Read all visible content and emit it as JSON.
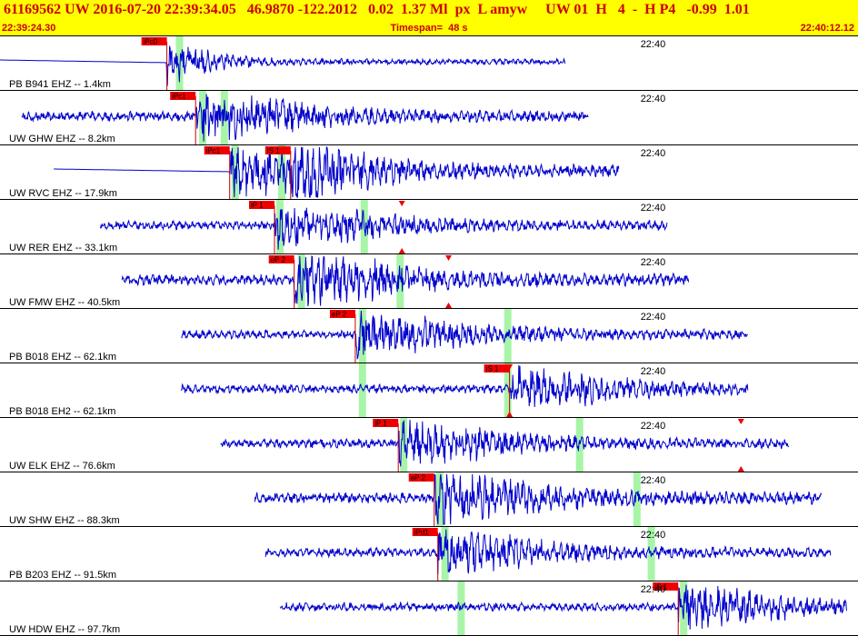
{
  "header": {
    "title": "61169562 UW 2016-07-20 22:39:34.05   46.9870 -122.2012   0.02  1.37 Ml  px  L amyw     UW 01  H   4  -  H P4   -0.99  1.01",
    "start_time": "22:39:24.30",
    "timespan": "Timespan=  48 s",
    "end_time": "22:40:12.12"
  },
  "time_start_s": 0,
  "time_span_s": 47.82,
  "minute_mark": {
    "label": "22:40",
    "time_s": 35.7
  },
  "colors": {
    "header_bg": "#ffff00",
    "header_text": "#cc0000",
    "waveform": "#0000cc",
    "pick_box": "#ee0000",
    "pick_window": "#a8f5a8",
    "marker": "#ee0000"
  },
  "channels": [
    {
      "label": "PB B941 EHZ -- 1.4km",
      "start": 0.0,
      "end": 31.5,
      "amp": 18,
      "flat_before": 9.3,
      "picks": [
        {
          "label": "iPc0",
          "t": 9.3
        }
      ],
      "windows": [
        9.8
      ],
      "phase_lines": [
        9.3
      ],
      "markers": []
    },
    {
      "label": "UW GHW EHZ -- 8.2km",
      "start": 1.2,
      "end": 32.8,
      "amp": 20,
      "flat_before": 0,
      "picks": [
        {
          "label": "iPc1",
          "t": 10.9
        }
      ],
      "windows": [
        11.1,
        12.3
      ],
      "phase_lines": [
        10.9
      ],
      "markers": []
    },
    {
      "label": "UW RVC EHZ -- 17.9km",
      "start": 3.0,
      "end": 34.5,
      "amp": 22,
      "flat_before": 12.8,
      "picks": [
        {
          "label": "iPc1",
          "t": 12.8
        },
        {
          "label": "iS 1",
          "t": 16.2
        }
      ],
      "windows": [
        12.9,
        15.5
      ],
      "phase_lines": [
        12.8,
        16.2
      ],
      "markers": []
    },
    {
      "label": "UW RER EHZ -- 33.1km",
      "start": 5.6,
      "end": 37.2,
      "amp": 18,
      "flat_before": 0,
      "picks": [
        {
          "label": "iP 1",
          "t": 15.3
        }
      ],
      "windows": [
        15.4,
        20.1
      ],
      "phase_lines": [
        15.3
      ],
      "markers": [
        {
          "t": 22.4,
          "dir": "down"
        },
        {
          "t": 22.4,
          "dir": "up"
        }
      ]
    },
    {
      "label": "UW FMW EHZ -- 40.5km",
      "start": 6.8,
      "end": 38.4,
      "amp": 22,
      "flat_before": 0,
      "picks": [
        {
          "label": "eP 2",
          "t": 16.4
        }
      ],
      "windows": [
        16.6,
        22.1
      ],
      "phase_lines": [
        16.4
      ],
      "markers": [
        {
          "t": 25.0,
          "dir": "down"
        },
        {
          "t": 25.0,
          "dir": "up"
        }
      ]
    },
    {
      "label": "PB B018 EHZ -- 62.1km",
      "start": 10.1,
      "end": 41.7,
      "amp": 18,
      "flat_before": 0,
      "picks": [
        {
          "label": "eP 2",
          "t": 19.8
        }
      ],
      "windows": [
        20.0,
        28.1
      ],
      "phase_lines": [
        19.8
      ],
      "markers": []
    },
    {
      "label": "PB B018 EH2 -- 62.1km",
      "start": 10.1,
      "end": 41.7,
      "amp": 18,
      "flat_before": 0,
      "picks": [
        {
          "label": "iS 1",
          "t": 28.4
        }
      ],
      "windows": [
        20.0,
        28.1
      ],
      "phase_lines": [
        28.4
      ],
      "markers": [
        {
          "t": 28.4,
          "dir": "down"
        },
        {
          "t": 28.4,
          "dir": "up"
        }
      ]
    },
    {
      "label": "UW ELK EHZ -- 76.6km",
      "start": 12.3,
      "end": 44.0,
      "amp": 18,
      "flat_before": 0,
      "picks": [
        {
          "label": "iP 1",
          "t": 22.2
        }
      ],
      "windows": [
        22.3,
        32.1
      ],
      "phase_lines": [
        22.2
      ],
      "markers": [
        {
          "t": 41.3,
          "dir": "down"
        },
        {
          "t": 41.3,
          "dir": "up"
        }
      ]
    },
    {
      "label": "UW SHW EHZ -- 88.3km",
      "start": 14.2,
      "end": 45.8,
      "amp": 22,
      "flat_before": 0,
      "picks": [
        {
          "label": "eP 2",
          "t": 24.2
        }
      ],
      "windows": [
        24.3,
        35.3
      ],
      "phase_lines": [
        24.2
      ],
      "markers": []
    },
    {
      "label": "PB B203 EHZ -- 91.5km",
      "start": 14.8,
      "end": 46.3,
      "amp": 18,
      "flat_before": 0,
      "picks": [
        {
          "label": "iPd1",
          "t": 24.4
        }
      ],
      "windows": [
        24.6,
        36.1
      ],
      "phase_lines": [
        24.4
      ],
      "markers": []
    },
    {
      "label": "UW HDW EHZ -- 97.7km",
      "start": 15.6,
      "end": 47.2,
      "amp": 18,
      "flat_before": 0,
      "picks": [
        {
          "label": "iS 1",
          "t": 37.8
        }
      ],
      "windows": [
        25.5,
        37.9
      ],
      "phase_lines": [
        37.8
      ],
      "markers": []
    }
  ]
}
